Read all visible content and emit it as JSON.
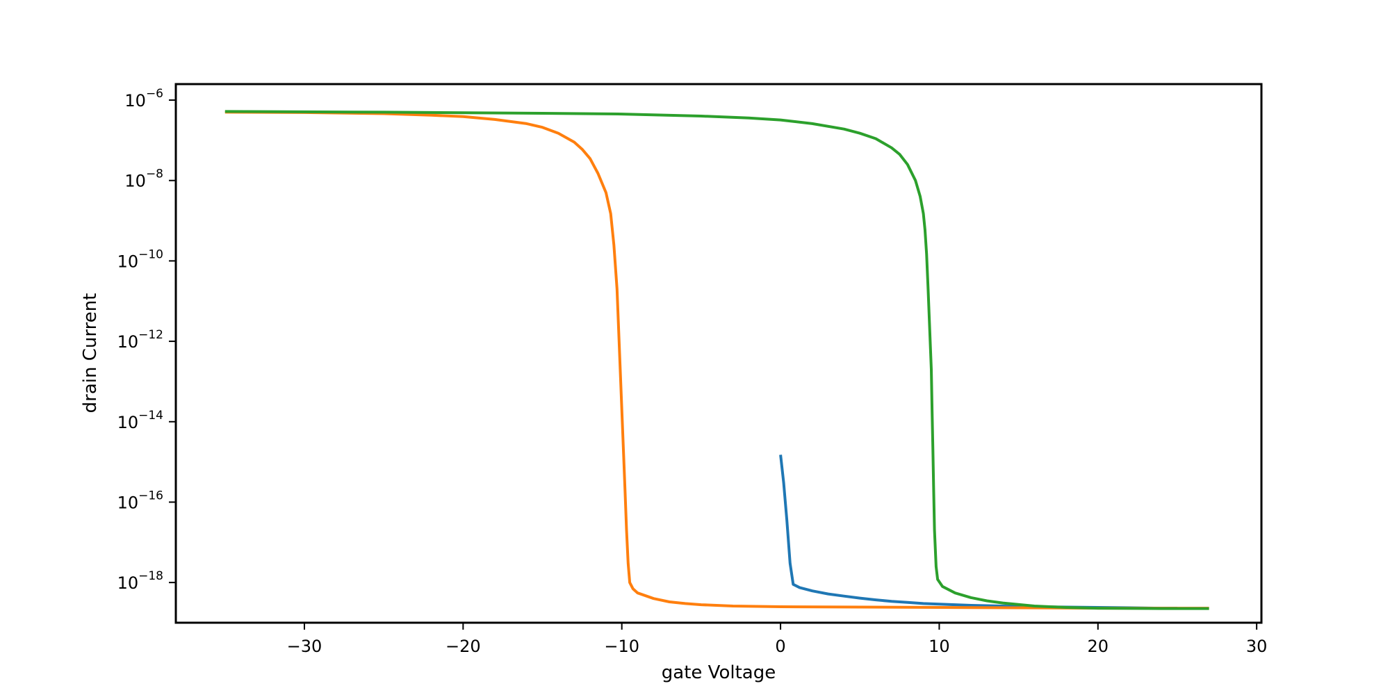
{
  "chart_data": {
    "type": "line",
    "title": "",
    "xlabel": "gate Voltage",
    "ylabel": "drain Current",
    "xlim": [
      -38.1,
      30.3
    ],
    "ylim": [
      1e-19,
      2.5e-06
    ],
    "yscale": "log",
    "grid": false,
    "legend": "none",
    "x_ticks": [
      {
        "value": -30,
        "label": "−30"
      },
      {
        "value": -20,
        "label": "−20"
      },
      {
        "value": -10,
        "label": "−10"
      },
      {
        "value": 0,
        "label": "0"
      },
      {
        "value": 10,
        "label": "10"
      },
      {
        "value": 20,
        "label": "20"
      },
      {
        "value": 30,
        "label": "30"
      }
    ],
    "y_ticks": [
      {
        "value": 1e-06,
        "base": "10",
        "exp": "−6"
      },
      {
        "value": 1e-08,
        "base": "10",
        "exp": "−8"
      },
      {
        "value": 1e-10,
        "base": "10",
        "exp": "−10"
      },
      {
        "value": 1e-12,
        "base": "10",
        "exp": "−12"
      },
      {
        "value": 1e-14,
        "base": "10",
        "exp": "−14"
      },
      {
        "value": 1e-16,
        "base": "10",
        "exp": "−16"
      },
      {
        "value": 1e-18,
        "base": "10",
        "exp": "−18"
      }
    ],
    "series": [
      {
        "color": "#1f77b4",
        "points": [
          [
            0.0,
            1.5e-15
          ],
          [
            0.2,
            3e-16
          ],
          [
            0.4,
            3.5e-17
          ],
          [
            0.6,
            3e-18
          ],
          [
            0.8,
            9e-19
          ],
          [
            1.2,
            7.5e-19
          ],
          [
            2.0,
            6.2e-19
          ],
          [
            3.0,
            5.2e-19
          ],
          [
            4.0,
            4.6e-19
          ],
          [
            5.0,
            4.1e-19
          ],
          [
            6.0,
            3.7e-19
          ],
          [
            7.0,
            3.4e-19
          ],
          [
            8.0,
            3.2e-19
          ],
          [
            9.0,
            3e-19
          ],
          [
            10.0,
            2.9e-19
          ],
          [
            12.0,
            2.7e-19
          ],
          [
            14.0,
            2.6e-19
          ],
          [
            16.0,
            2.5e-19
          ],
          [
            18.0,
            2.45e-19
          ],
          [
            20.0,
            2.4e-19
          ],
          [
            22.0,
            2.35e-19
          ],
          [
            24.0,
            2.3e-19
          ],
          [
            25.0,
            2.3e-19
          ]
        ]
      },
      {
        "color": "#ff7f0e",
        "points": [
          [
            -35.0,
            5e-07
          ],
          [
            -30.0,
            4.9e-07
          ],
          [
            -25.0,
            4.6e-07
          ],
          [
            -22.0,
            4.2e-07
          ],
          [
            -20.0,
            3.9e-07
          ],
          [
            -18.0,
            3.3e-07
          ],
          [
            -16.0,
            2.6e-07
          ],
          [
            -15.0,
            2.1e-07
          ],
          [
            -14.0,
            1.5e-07
          ],
          [
            -13.0,
            9e-08
          ],
          [
            -12.5,
            6e-08
          ],
          [
            -12.0,
            3.5e-08
          ],
          [
            -11.5,
            1.5e-08
          ],
          [
            -11.0,
            5e-09
          ],
          [
            -10.7,
            1.5e-09
          ],
          [
            -10.5,
            2.5e-10
          ],
          [
            -10.3,
            2e-11
          ],
          [
            -10.2,
            2e-12
          ],
          [
            -10.1,
            2e-13
          ],
          [
            -10.0,
            2e-14
          ],
          [
            -9.9,
            2e-15
          ],
          [
            -9.8,
            2e-16
          ],
          [
            -9.7,
            2e-17
          ],
          [
            -9.6,
            3e-18
          ],
          [
            -9.5,
            1e-18
          ],
          [
            -9.3,
            7e-19
          ],
          [
            -9.0,
            5.5e-19
          ],
          [
            -8.0,
            4e-19
          ],
          [
            -7.0,
            3.3e-19
          ],
          [
            -6.0,
            3e-19
          ],
          [
            -5.0,
            2.8e-19
          ],
          [
            -3.0,
            2.6e-19
          ],
          [
            0.0,
            2.5e-19
          ],
          [
            5.0,
            2.45e-19
          ],
          [
            10.0,
            2.4e-19
          ],
          [
            15.0,
            2.35e-19
          ],
          [
            20.0,
            2.3e-19
          ],
          [
            25.0,
            2.3e-19
          ],
          [
            27.0,
            2.3e-19
          ]
        ]
      },
      {
        "color": "#2ca02c",
        "points": [
          [
            -35.0,
            5.2e-07
          ],
          [
            -25.0,
            5e-07
          ],
          [
            -15.0,
            4.7e-07
          ],
          [
            -10.0,
            4.5e-07
          ],
          [
            -5.0,
            4e-07
          ],
          [
            -2.0,
            3.6e-07
          ],
          [
            0.0,
            3.2e-07
          ],
          [
            2.0,
            2.6e-07
          ],
          [
            4.0,
            1.9e-07
          ],
          [
            5.0,
            1.5e-07
          ],
          [
            6.0,
            1.1e-07
          ],
          [
            7.0,
            6.5e-08
          ],
          [
            7.5,
            4.5e-08
          ],
          [
            8.0,
            2.5e-08
          ],
          [
            8.5,
            1e-08
          ],
          [
            8.8,
            4e-09
          ],
          [
            9.0,
            1.5e-09
          ],
          [
            9.1,
            6e-10
          ],
          [
            9.2,
            1.5e-10
          ],
          [
            9.3,
            2e-11
          ],
          [
            9.4,
            2e-12
          ],
          [
            9.5,
            2e-13
          ],
          [
            9.55,
            2e-14
          ],
          [
            9.6,
            2e-15
          ],
          [
            9.65,
            2e-16
          ],
          [
            9.7,
            2e-17
          ],
          [
            9.8,
            2.5e-18
          ],
          [
            9.9,
            1.2e-18
          ],
          [
            10.2,
            8e-19
          ],
          [
            11.0,
            5.5e-19
          ],
          [
            12.0,
            4.2e-19
          ],
          [
            13.0,
            3.5e-19
          ],
          [
            14.0,
            3.1e-19
          ],
          [
            16.0,
            2.6e-19
          ],
          [
            18.0,
            2.4e-19
          ],
          [
            20.0,
            2.3e-19
          ],
          [
            24.0,
            2.25e-19
          ],
          [
            27.0,
            2.25e-19
          ]
        ]
      }
    ]
  }
}
